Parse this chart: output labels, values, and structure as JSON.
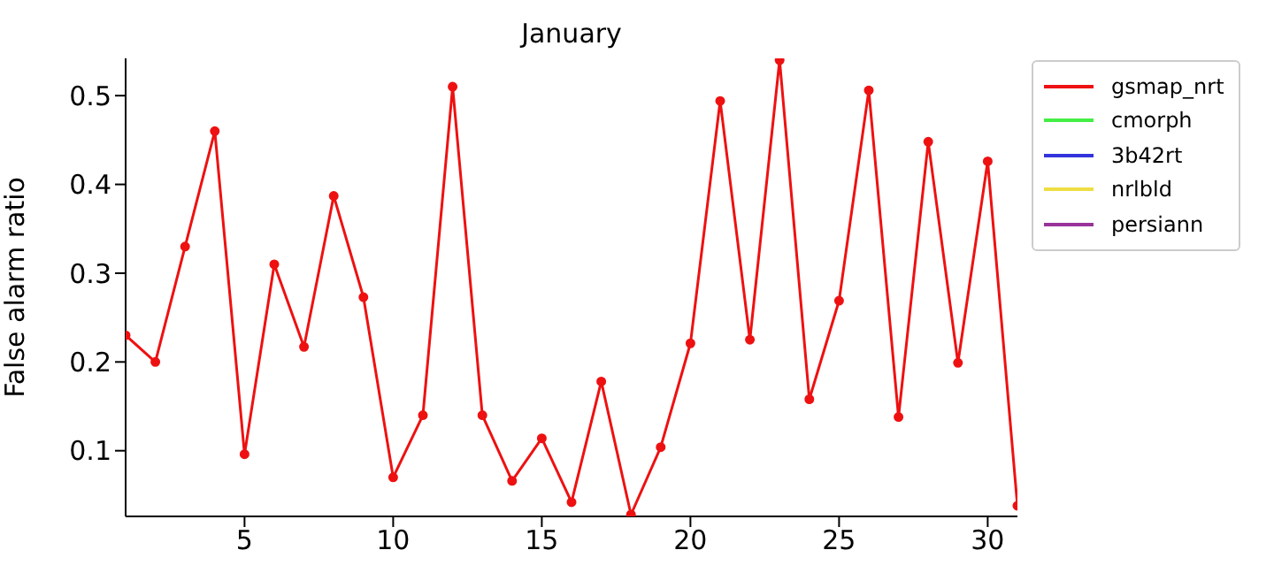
{
  "chart_data": {
    "type": "line",
    "title": "January",
    "ylabel": "False alarm ratio",
    "x": [
      1,
      2,
      3,
      4,
      5,
      6,
      7,
      8,
      9,
      10,
      11,
      12,
      13,
      14,
      15,
      16,
      17,
      18,
      19,
      20,
      21,
      22,
      23,
      24,
      25,
      26,
      27,
      28,
      29,
      30,
      31
    ],
    "series": [
      {
        "name": "gsmap_nrt",
        "color": "#ee1111",
        "values": [
          0.23,
          0.2,
          0.33,
          0.46,
          0.096,
          0.31,
          0.217,
          0.387,
          0.273,
          0.07,
          0.14,
          0.51,
          0.14,
          0.066,
          0.114,
          0.042,
          0.178,
          0.028,
          0.104,
          0.221,
          0.494,
          0.225,
          0.54,
          0.158,
          0.269,
          0.506,
          0.138,
          0.448,
          0.199,
          0.426,
          0.038
        ]
      },
      {
        "name": "cmorph",
        "color": "#44ee44",
        "values": [
          null,
          null,
          null,
          null,
          null,
          null,
          null,
          null,
          null,
          null,
          null,
          null,
          null,
          null,
          null,
          null,
          null,
          null,
          null,
          null,
          null,
          null,
          null,
          null,
          null,
          null,
          null,
          null,
          null,
          null,
          null
        ]
      },
      {
        "name": "3b42rt",
        "color": "#3333dd",
        "values": [
          null,
          null,
          null,
          null,
          null,
          null,
          null,
          null,
          null,
          null,
          null,
          null,
          null,
          null,
          null,
          null,
          null,
          null,
          null,
          null,
          null,
          null,
          null,
          null,
          null,
          null,
          null,
          null,
          null,
          null,
          null
        ]
      },
      {
        "name": "nrlbld",
        "color": "#eedd44",
        "values": [
          null,
          null,
          null,
          null,
          null,
          null,
          null,
          null,
          null,
          null,
          null,
          null,
          null,
          null,
          null,
          null,
          null,
          null,
          null,
          null,
          null,
          null,
          null,
          null,
          null,
          null,
          null,
          null,
          null,
          null,
          null
        ]
      },
      {
        "name": "persiann",
        "color": "#993399",
        "values": [
          null,
          null,
          null,
          null,
          null,
          null,
          null,
          null,
          null,
          null,
          null,
          null,
          null,
          null,
          null,
          null,
          null,
          null,
          null,
          null,
          null,
          null,
          null,
          null,
          null,
          null,
          null,
          null,
          null,
          null,
          null
        ]
      }
    ],
    "xlim": [
      1,
      31
    ],
    "xticks": [
      5,
      10,
      15,
      20,
      25,
      30
    ],
    "ylim": [
      0.026,
      0.542
    ],
    "yticks": [
      0.1,
      0.2,
      0.3,
      0.4,
      0.5
    ],
    "grid": false,
    "legend": "top right",
    "marker": "circle",
    "line_style": "solid"
  }
}
